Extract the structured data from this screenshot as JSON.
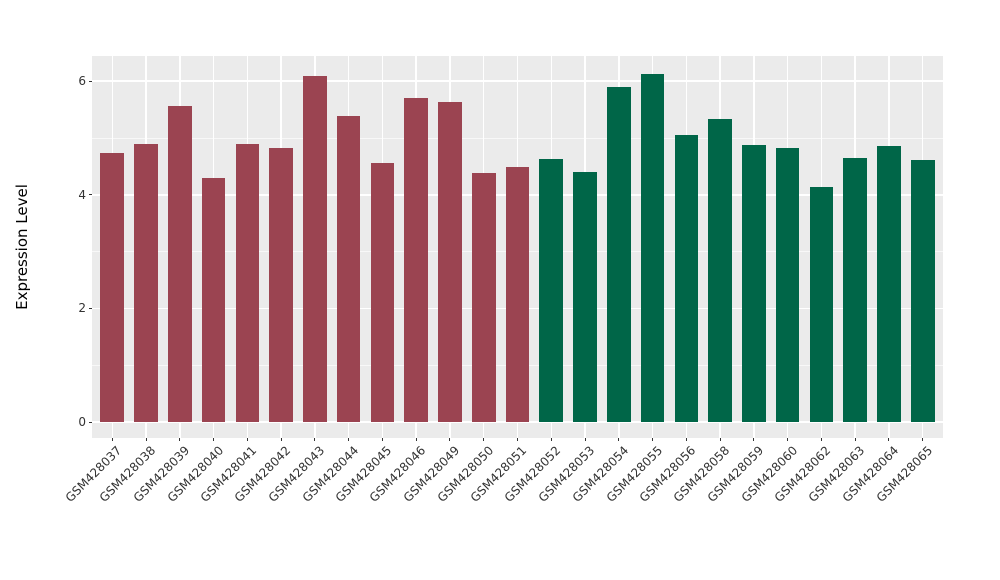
{
  "chart_data": {
    "type": "bar",
    "title": "",
    "xlabel": "",
    "ylabel": "Expression Level",
    "ylim": [
      0,
      6.44
    ],
    "yticks": [
      "0",
      "2",
      "4",
      "6"
    ],
    "ytick_values": [
      0,
      2,
      4,
      6
    ],
    "yminor_values": [
      1,
      3,
      5
    ],
    "grid": "on",
    "legend": "none",
    "style": "ggplot-gray-panel",
    "colors": {
      "group1": "#9B4451",
      "group2": "#006648",
      "panel_background": "#EBEBEB",
      "grid_major": "#FFFFFF",
      "figure_background": "#FFFFFF",
      "tick_text": "#333333"
    },
    "bars": [
      {
        "label": "GSM428037",
        "value": 4.73,
        "group": "group1",
        "color": "#9B4451"
      },
      {
        "label": "GSM428038",
        "value": 4.9,
        "group": "group1",
        "color": "#9B4451"
      },
      {
        "label": "GSM428039",
        "value": 5.57,
        "group": "group1",
        "color": "#9B4451"
      },
      {
        "label": "GSM428040",
        "value": 4.29,
        "group": "group1",
        "color": "#9B4451"
      },
      {
        "label": "GSM428041",
        "value": 4.9,
        "group": "group1",
        "color": "#9B4451"
      },
      {
        "label": "GSM428042",
        "value": 4.83,
        "group": "group1",
        "color": "#9B4451"
      },
      {
        "label": "GSM428043",
        "value": 6.1,
        "group": "group1",
        "color": "#9B4451"
      },
      {
        "label": "GSM428044",
        "value": 5.39,
        "group": "group1",
        "color": "#9B4451"
      },
      {
        "label": "GSM428045",
        "value": 4.56,
        "group": "group1",
        "color": "#9B4451"
      },
      {
        "label": "GSM428046",
        "value": 5.7,
        "group": "group1",
        "color": "#9B4451"
      },
      {
        "label": "GSM428049",
        "value": 5.64,
        "group": "group1",
        "color": "#9B4451"
      },
      {
        "label": "GSM428050",
        "value": 4.39,
        "group": "group1",
        "color": "#9B4451"
      },
      {
        "label": "GSM428051",
        "value": 4.49,
        "group": "group1",
        "color": "#9B4451"
      },
      {
        "label": "GSM428052",
        "value": 4.63,
        "group": "group2",
        "color": "#006648"
      },
      {
        "label": "GSM428053",
        "value": 4.41,
        "group": "group2",
        "color": "#006648"
      },
      {
        "label": "GSM428054",
        "value": 5.9,
        "group": "group2",
        "color": "#006648"
      },
      {
        "label": "GSM428055",
        "value": 6.13,
        "group": "group2",
        "color": "#006648"
      },
      {
        "label": "GSM428056",
        "value": 5.05,
        "group": "group2",
        "color": "#006648"
      },
      {
        "label": "GSM428058",
        "value": 5.33,
        "group": "group2",
        "color": "#006648"
      },
      {
        "label": "GSM428059",
        "value": 4.87,
        "group": "group2",
        "color": "#006648"
      },
      {
        "label": "GSM428060",
        "value": 4.82,
        "group": "group2",
        "color": "#006648"
      },
      {
        "label": "GSM428062",
        "value": 4.14,
        "group": "group2",
        "color": "#006648"
      },
      {
        "label": "GSM428063",
        "value": 4.65,
        "group": "group2",
        "color": "#006648"
      },
      {
        "label": "GSM428064",
        "value": 4.86,
        "group": "group2",
        "color": "#006648"
      },
      {
        "label": "GSM428065",
        "value": 4.62,
        "group": "group2",
        "color": "#006648"
      }
    ]
  }
}
